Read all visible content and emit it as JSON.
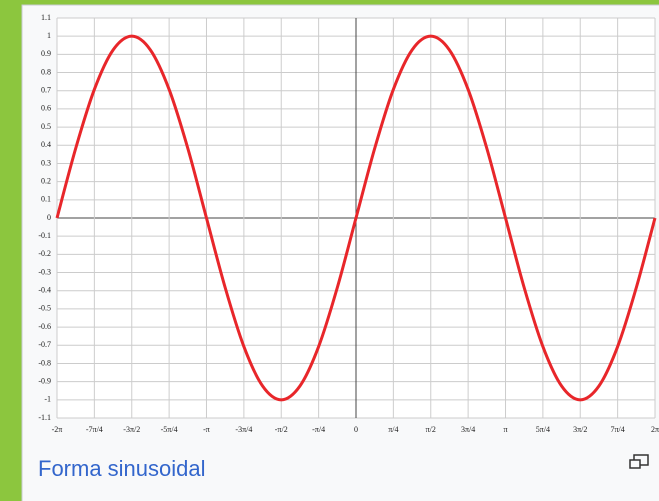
{
  "chart_data": {
    "type": "line",
    "caption": "Forma sinusoidal",
    "color": "#e8262a",
    "grid": true,
    "x": [
      -6.283,
      -5.89,
      -5.498,
      -5.105,
      -4.712,
      -4.32,
      -3.927,
      -3.534,
      -3.142,
      -2.749,
      -2.356,
      -1.963,
      -1.571,
      -1.178,
      -0.785,
      -0.393,
      0,
      0.393,
      0.785,
      1.178,
      1.571,
      1.963,
      2.356,
      2.749,
      3.142,
      3.534,
      3.927,
      4.32,
      4.712,
      5.105,
      5.498,
      5.89,
      6.283
    ],
    "values": [
      0,
      0.383,
      0.707,
      0.924,
      1,
      0.924,
      0.707,
      0.383,
      0,
      -0.383,
      -0.707,
      -0.924,
      -1,
      -0.924,
      -0.707,
      -0.383,
      0,
      0.383,
      0.707,
      0.924,
      1,
      0.924,
      0.707,
      0.383,
      0,
      -0.383,
      -0.707,
      -0.924,
      -1,
      -0.924,
      -0.707,
      -0.383,
      0
    ],
    "xlim": [
      -6.283,
      6.283
    ],
    "xticks": [
      {
        "value": -6.283,
        "label": "-2π"
      },
      {
        "value": -5.498,
        "label": "-7π/4"
      },
      {
        "value": -4.712,
        "label": "-3π/2"
      },
      {
        "value": -3.927,
        "label": "-5π/4"
      },
      {
        "value": -3.142,
        "label": "-π"
      },
      {
        "value": -2.356,
        "label": "-3π/4"
      },
      {
        "value": -1.571,
        "label": "-π/2"
      },
      {
        "value": -0.785,
        "label": "-π/4"
      },
      0,
      {
        "value": 0.785,
        "label": "π/4"
      },
      {
        "value": 1.571,
        "label": "π/2"
      },
      {
        "value": 2.356,
        "label": "3π/4"
      },
      {
        "value": 3.142,
        "label": "π"
      },
      {
        "value": 3.927,
        "label": "5π/4"
      },
      {
        "value": 4.712,
        "label": "3π/2"
      },
      {
        "value": 5.498,
        "label": "7π/4"
      },
      {
        "value": 6.283,
        "label": "2π"
      }
    ],
    "ylim": [
      -1.1,
      1.1
    ],
    "yticks": [
      1.1,
      1,
      0.9,
      0.8,
      0.7,
      0.6,
      0.5,
      0.4,
      0.3,
      0.2,
      0.1,
      0,
      -0.1,
      -0.2,
      -0.3,
      -0.4,
      -0.5,
      -0.6,
      -0.7,
      -0.8,
      -0.9,
      -1,
      -1.1
    ]
  }
}
